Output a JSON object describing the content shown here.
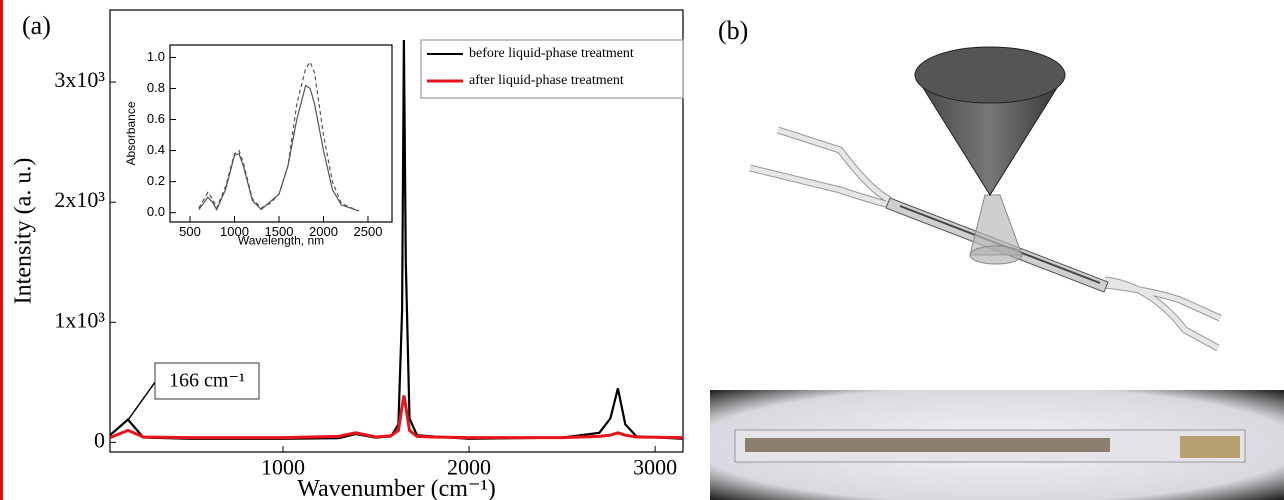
{
  "panel_labels": [
    "(a)",
    "(b)"
  ],
  "chart_data": [
    {
      "type": "line",
      "xlabel": "Wavenumber (cm⁻¹)",
      "ylabel": "Intensity (a. u.)",
      "xlim": [
        70,
        3150
      ],
      "ylim": [
        -80,
        3600
      ],
      "xticks": [
        1000,
        2000,
        3000
      ],
      "yticks": [
        0,
        {
          "value": 1000,
          "label": "1x10³"
        },
        {
          "value": 2000,
          "label": "2x10³"
        },
        {
          "value": 3000,
          "label": "3x10³"
        }
      ],
      "legend": "upper right",
      "annotation": "166 cm⁻¹",
      "x": [
        70,
        166,
        250,
        500,
        1000,
        1300,
        1390,
        1500,
        1580,
        1620,
        1640,
        1650,
        1660,
        1680,
        1720,
        1800,
        2000,
        2500,
        2700,
        2760,
        2800,
        2840,
        2900,
        3150
      ],
      "series": [
        {
          "name": "before liquid-phase treatment",
          "color": "#000000",
          "values": [
            60,
            190,
            40,
            30,
            30,
            35,
            70,
            40,
            50,
            150,
            1100,
            3350,
            1500,
            200,
            60,
            50,
            30,
            40,
            80,
            200,
            450,
            150,
            50,
            30
          ]
        },
        {
          "name": "after liquid-phase treatment",
          "color": "#e8141b",
          "values": [
            40,
            100,
            45,
            40,
            40,
            50,
            80,
            45,
            55,
            100,
            300,
            390,
            300,
            100,
            50,
            45,
            40,
            40,
            50,
            60,
            80,
            60,
            45,
            40
          ]
        }
      ]
    },
    {
      "type": "line",
      "xlabel": "Wavelength, nm",
      "ylabel": "Absorbance",
      "xlim": [
        275,
        2770
      ],
      "ylim": [
        -0.06,
        1.08
      ],
      "xticks": [
        500,
        1000,
        1500,
        2000,
        2500
      ],
      "yticks": [
        {
          "value": 0,
          "label": "0.0"
        },
        {
          "value": 0.2,
          "label": "0.2"
        },
        {
          "value": 0.4,
          "label": "0.4"
        },
        {
          "value": 0.6,
          "label": "0.6"
        },
        {
          "value": 0.8,
          "label": "0.8"
        },
        {
          "value": 1,
          "label": "1.0"
        }
      ],
      "x": [
        600,
        700,
        750,
        800,
        900,
        1000,
        1050,
        1100,
        1200,
        1300,
        1400,
        1500,
        1600,
        1700,
        1800,
        1850,
        1900,
        2000,
        2100,
        2200,
        2400
      ],
      "series": [
        {
          "color": "#555555",
          "dash": false,
          "values": [
            0.02,
            0.1,
            0.07,
            0.02,
            0.15,
            0.37,
            0.38,
            0.3,
            0.08,
            0.02,
            0.07,
            0.12,
            0.3,
            0.6,
            0.82,
            0.8,
            0.7,
            0.4,
            0.15,
            0.05,
            0.01
          ]
        },
        {
          "color": "#555555",
          "dash": true,
          "values": [
            0.03,
            0.13,
            0.09,
            0.03,
            0.17,
            0.38,
            0.4,
            0.32,
            0.09,
            0.03,
            0.06,
            0.12,
            0.3,
            0.7,
            0.93,
            0.97,
            0.9,
            0.5,
            0.2,
            0.06,
            0.01
          ]
        }
      ]
    }
  ]
}
